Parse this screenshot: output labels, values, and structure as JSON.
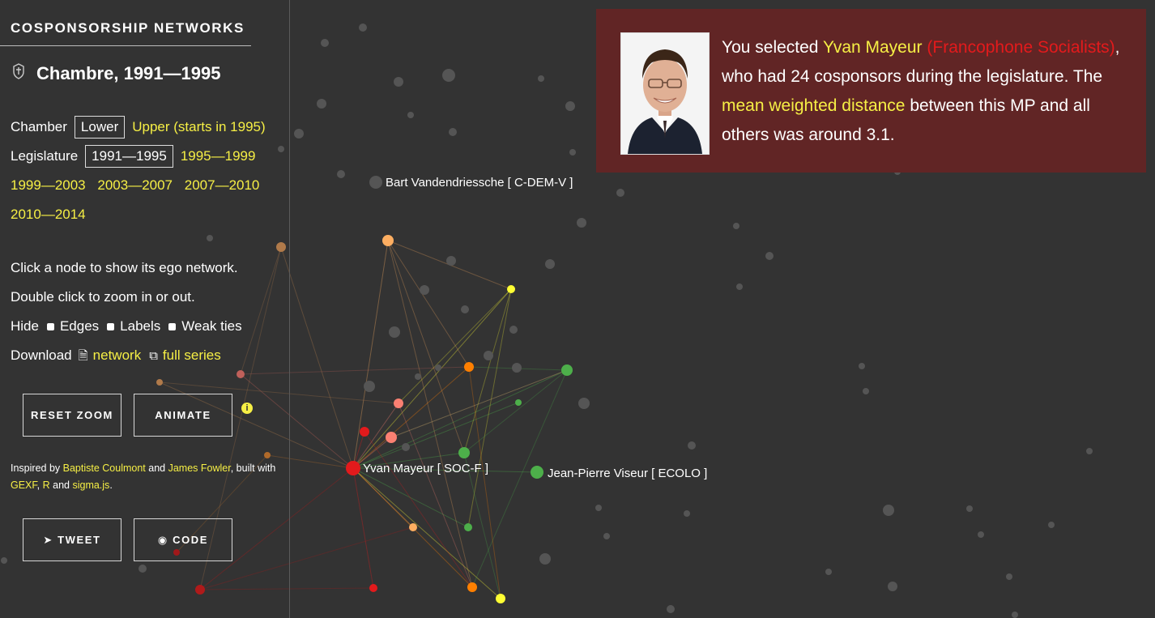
{
  "brand": "COSPONSORSHIP NETWORKS",
  "title": "Chambre, 1991—1995",
  "chamber": {
    "label": "Chamber",
    "current": "Lower",
    "other": "Upper (starts in 1995)"
  },
  "legislature": {
    "label": "Legislature",
    "current": "1991—1995",
    "options": [
      "1995—1999",
      "1999—2003",
      "2003—2007",
      "2007—2010",
      "2010—2014"
    ]
  },
  "instructions": {
    "click": "Click a node to show its ego network.",
    "double": "Double click to zoom in or out."
  },
  "hide": {
    "label": "Hide",
    "options": [
      "Edges",
      "Labels",
      "Weak ties"
    ]
  },
  "download": {
    "label": "Download",
    "network": "network",
    "series": "full series"
  },
  "buttons": {
    "reset": "RESET ZOOM",
    "animate": "ANIMATE",
    "tweet": "TWEET",
    "code": "CODE"
  },
  "credits": {
    "inspired": "Inspired by",
    "person1": "Baptiste Coulmont",
    "and1": "and",
    "person2": "James Fowler",
    "built": ", built with",
    "tool1": "GEXF",
    "tool2": "R",
    "and2": "and",
    "tool3": "sigma.js",
    "end": "."
  },
  "selection": {
    "prefix": "You selected",
    "name": "Yvan Mayeur",
    "party": "(Francophone Socialists)",
    "mid": ", who had 24 cosponsors during the legislature. The",
    "metric": "mean weighted distance",
    "suffix": "between this MP and all others was around 3.1."
  },
  "graph_labels": {
    "bart": "Bart Vandendriessche [ C-DEM-V ]",
    "yvan": "Yvan Mayeur [ SOC-F ]",
    "jean": "Jean-Pierre Viseur [ ECOLO ]"
  },
  "colors": {
    "background": "#333333",
    "panel": "#612525",
    "link": "#f6ef45",
    "socialist": "#e31a1c",
    "ecolo": "#4daf4a",
    "orange": "#ff7f00",
    "light_orange": "#fdae61",
    "pink": "#fb8072",
    "yellow": "#ffff33",
    "inactive_node": "#555555"
  },
  "icons": [
    "crest-icon",
    "file-icon",
    "copy-icon",
    "info-icon",
    "twitter-icon",
    "github-icon"
  ]
}
